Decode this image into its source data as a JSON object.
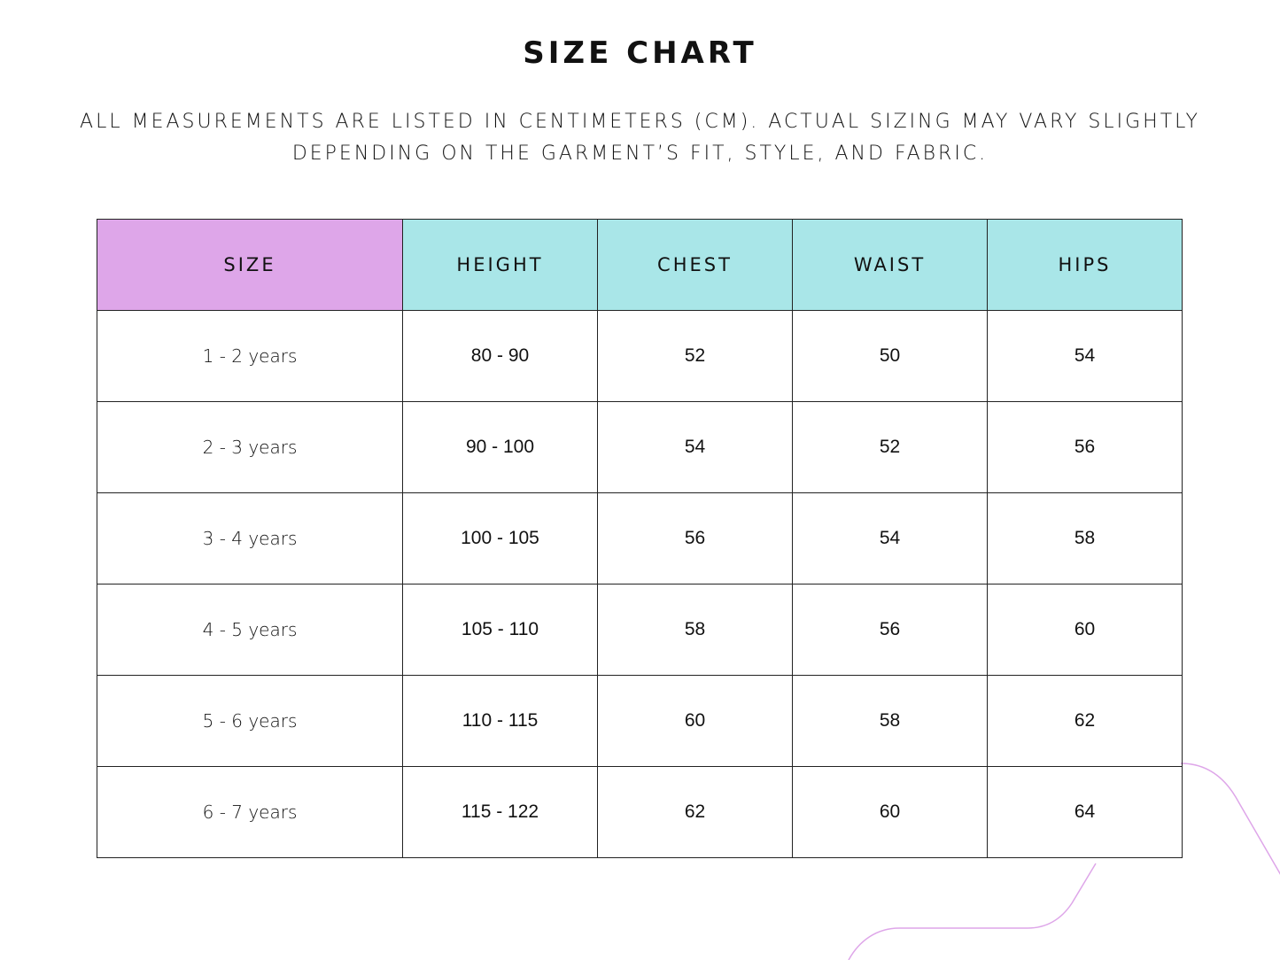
{
  "title": "SIZE CHART",
  "subtitle": "ALL MEASUREMENTS ARE LISTED IN CENTIMETERS (CM). ACTUAL SIZING MAY VARY SLIGHTLY DEPENDING ON THE GARMENT’S FIT, STYLE, AND FABRIC.",
  "colors": {
    "size_header": "#dea6e9",
    "measure_header": "#a9e6e8",
    "decor_line": "#dea6e9"
  },
  "table": {
    "headers": [
      "SIZE",
      "HEIGHT",
      "CHEST",
      "WAIST",
      "HIPS"
    ],
    "rows": [
      [
        "1 - 2 years",
        "80 - 90",
        "52",
        "50",
        "54"
      ],
      [
        "2 - 3 years",
        "90 - 100",
        "54",
        "52",
        "56"
      ],
      [
        "3 - 4 years",
        "100 - 105",
        "56",
        "54",
        "58"
      ],
      [
        "4 - 5 years",
        "105 - 110",
        "58",
        "56",
        "60"
      ],
      [
        "5 - 6 years",
        "110 - 115",
        "60",
        "58",
        "62"
      ],
      [
        "6 - 7 years",
        "115 - 122",
        "62",
        "60",
        "64"
      ]
    ]
  }
}
